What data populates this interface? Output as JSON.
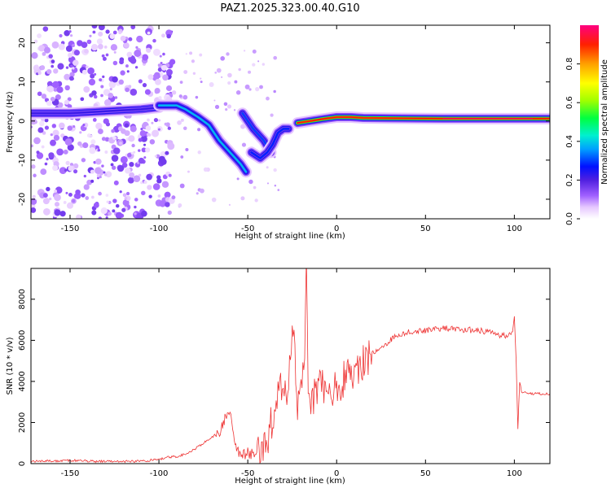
{
  "figure": {
    "title": "PAZ1.2025.323.00.40.G10",
    "colorbar_label": "Normalized spectral amplitude",
    "colorbar_ticks": [
      "0.0",
      "0.2",
      "0.4",
      "0.6",
      "0.8"
    ]
  },
  "chart_data": [
    {
      "type": "heatmap",
      "title": "PAZ1.2025.323.00.40.G10",
      "xlabel": "Height of straight line (km)",
      "ylabel": "Frequency (Hz)",
      "xlim": [
        -172,
        120
      ],
      "ylim": [
        -25,
        24.5
      ],
      "xticks": [
        -150,
        -100,
        -50,
        0,
        50,
        100
      ],
      "yticks": [
        -20,
        -10,
        0,
        10,
        20
      ],
      "colorbar": {
        "label": "Normalized spectral amplitude",
        "range": [
          0,
          1
        ],
        "ticks": [
          0.0,
          0.2,
          0.4,
          0.6,
          0.8
        ]
      },
      "ridge_segments": [
        {
          "x": [
            -172,
            -150,
            -130,
            -110,
            -100
          ],
          "freq": [
            2,
            2,
            2.5,
            3,
            3.5
          ],
          "amplitude": 0.22
        },
        {
          "x": [
            -100,
            -90,
            -85,
            -78,
            -72,
            -66,
            -60,
            -54,
            -51
          ],
          "freq": [
            4,
            4,
            3,
            1,
            -1,
            -5,
            -8,
            -11,
            -13
          ],
          "amplitude": 0.38
        },
        {
          "x": [
            -53,
            -47,
            -41,
            -37
          ],
          "freq": [
            2,
            -2,
            -5,
            -8
          ],
          "amplitude": 0.3
        },
        {
          "x": [
            -48,
            -43,
            -39,
            -36,
            -33,
            -30,
            -27
          ],
          "freq": [
            -8,
            -9.5,
            -8,
            -6,
            -3,
            -2,
            -2
          ],
          "amplitude": 0.28
        },
        {
          "x": [
            -22,
            -15,
            -8,
            0,
            8,
            15,
            30,
            60,
            90,
            100,
            110,
            120
          ],
          "freq": [
            -0.5,
            0,
            0.5,
            1,
            1,
            0.8,
            0.7,
            0.6,
            0.6,
            0.6,
            0.6,
            0.6
          ],
          "amplitude": 0.9
        }
      ],
      "noise_region_x": [
        -172,
        -92
      ]
    },
    {
      "type": "line",
      "title": "",
      "xlabel": "Height of straight line (km)",
      "ylabel": "SNR (10 * v/v)",
      "xlim": [
        -172,
        120
      ],
      "ylim": [
        0,
        9500
      ],
      "xticks": [
        -150,
        -100,
        -50,
        0,
        50,
        100
      ],
      "yticks": [
        0,
        2000,
        4000,
        6000,
        8000
      ],
      "series": [
        {
          "name": "SNR",
          "color": "#ee3333",
          "x": [
            -172,
            -150,
            -130,
            -110,
            -100,
            -95,
            -90,
            -85,
            -80,
            -75,
            -70,
            -65,
            -62,
            -60,
            -58,
            -55,
            -52,
            -50,
            -45,
            -40,
            -38,
            -36,
            -34,
            -32,
            -30,
            -28,
            -26,
            -24,
            -22,
            -20,
            -18,
            -17,
            -16,
            -14,
            -12,
            -10,
            -8,
            -5,
            0,
            5,
            10,
            15,
            20,
            25,
            30,
            35,
            40,
            50,
            60,
            70,
            80,
            90,
            95,
            99,
            100,
            101,
            102,
            103,
            104,
            106,
            110,
            120
          ],
          "y": [
            100,
            150,
            100,
            120,
            200,
            300,
            350,
            450,
            700,
            1000,
            1300,
            1600,
            2400,
            2500,
            1200,
            600,
            450,
            500,
            550,
            800,
            1500,
            2200,
            3000,
            3500,
            4000,
            2600,
            5200,
            6500,
            2800,
            3800,
            6000,
            9400,
            3500,
            2800,
            3600,
            4000,
            3800,
            3500,
            3700,
            4200,
            4600,
            4900,
            5400,
            5600,
            6000,
            6300,
            6400,
            6500,
            6600,
            6500,
            6500,
            6300,
            6200,
            6400,
            7200,
            5000,
            1700,
            4000,
            3500,
            3500,
            3400,
            3400
          ]
        }
      ]
    }
  ]
}
